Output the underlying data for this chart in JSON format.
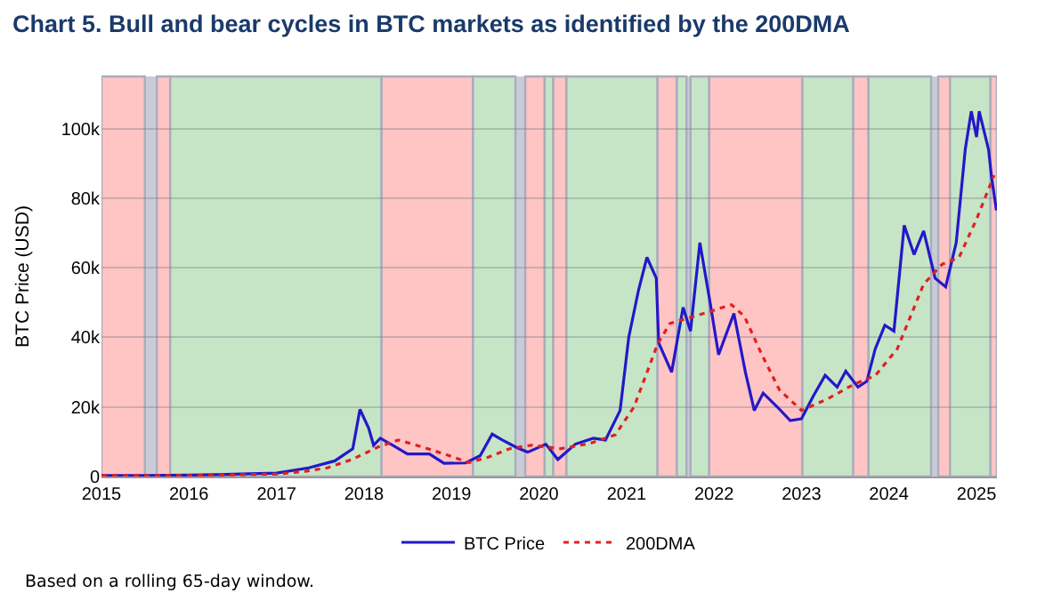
{
  "chart_data": {
    "type": "line",
    "title": "Chart 5. Bull and bear cycles in BTC markets as identified by the 200DMA",
    "ylabel": "BTC Price (USD)",
    "annotations": [
      "Based on a rolling 65-day window."
    ],
    "xlim": [
      "2015-01-01",
      "2025-03-27"
    ],
    "xticks": [
      "2015",
      "2016",
      "2017",
      "2018",
      "2019",
      "2020",
      "2021",
      "2022",
      "2023",
      "2024",
      "2025"
    ],
    "ylim": [
      0,
      115000
    ],
    "yticks": [
      {
        "value": 0,
        "label": "0"
      },
      {
        "value": 20000,
        "label": "20k"
      },
      {
        "value": 40000,
        "label": "40k"
      },
      {
        "value": 60000,
        "label": "60k"
      },
      {
        "value": 80000,
        "label": "80k"
      },
      {
        "value": 100000,
        "label": "100k"
      }
    ],
    "grid": "y",
    "legend": "bottom",
    "bands": [
      {
        "axis": "x",
        "from": "2015-01-01",
        "to": "2015-07-01",
        "color": "#ffc4c4"
      },
      {
        "axis": "x",
        "from": "2015-08-20",
        "to": "2015-10-15",
        "color": "#ffc4c4"
      },
      {
        "axis": "x",
        "from": "2015-10-15",
        "to": "2018-03-15",
        "color": "#c6e5c6"
      },
      {
        "axis": "x",
        "from": "2018-03-15",
        "to": "2019-04-01",
        "color": "#ffc4c4"
      },
      {
        "axis": "x",
        "from": "2019-04-01",
        "to": "2019-09-25",
        "color": "#c6e5c6"
      },
      {
        "axis": "x",
        "from": "2019-11-05",
        "to": "2020-01-25",
        "color": "#ffc4c4"
      },
      {
        "axis": "x",
        "from": "2020-01-25",
        "to": "2020-03-01",
        "color": "#c6e5c6"
      },
      {
        "axis": "x",
        "from": "2020-03-01",
        "to": "2020-04-25",
        "color": "#ffc4c4"
      },
      {
        "axis": "x",
        "from": "2020-04-25",
        "to": "2021-05-10",
        "color": "#c6e5c6"
      },
      {
        "axis": "x",
        "from": "2021-05-10",
        "to": "2021-07-30",
        "color": "#ffc4c4"
      },
      {
        "axis": "x",
        "from": "2021-07-30",
        "to": "2021-09-08",
        "color": "#c6e5c6"
      },
      {
        "axis": "x",
        "from": "2021-09-25",
        "to": "2021-12-12",
        "color": "#c6e5c6"
      },
      {
        "axis": "x",
        "from": "2021-12-12",
        "to": "2023-01-05",
        "color": "#ffc4c4"
      },
      {
        "axis": "x",
        "from": "2023-01-05",
        "to": "2023-08-05",
        "color": "#c6e5c6"
      },
      {
        "axis": "x",
        "from": "2023-08-05",
        "to": "2023-10-08",
        "color": "#ffc4c4"
      },
      {
        "axis": "x",
        "from": "2023-10-08",
        "to": "2024-06-25",
        "color": "#c6e5c6"
      },
      {
        "axis": "x",
        "from": "2024-07-25",
        "to": "2024-09-12",
        "color": "#ffc4c4"
      },
      {
        "axis": "x",
        "from": "2024-09-12",
        "to": "2025-02-28",
        "color": "#c6e5c6"
      },
      {
        "axis": "x",
        "from": "2025-02-28",
        "to": "2025-03-27",
        "color": "#ffc4c4"
      }
    ],
    "series": [
      {
        "name": "BTC Price",
        "color": "#2318c8",
        "line_style": "solid",
        "x": [
          "2015-01-01",
          "2015-07-01",
          "2016-01-01",
          "2016-07-01",
          "2017-01-01",
          "2017-05-15",
          "2017-09-01",
          "2017-11-15",
          "2017-12-15",
          "2018-01-20",
          "2018-02-10",
          "2018-03-10",
          "2018-05-01",
          "2018-07-01",
          "2018-10-01",
          "2018-12-01",
          "2019-03-01",
          "2019-05-01",
          "2019-06-20",
          "2019-08-01",
          "2019-10-01",
          "2019-11-15",
          "2020-01-30",
          "2020-03-20",
          "2020-06-01",
          "2020-08-15",
          "2020-10-05",
          "2020-12-05",
          "2021-01-10",
          "2021-02-20",
          "2021-03-27",
          "2021-05-05",
          "2021-05-15",
          "2021-07-08",
          "2021-08-25",
          "2021-09-25",
          "2021-11-03",
          "2021-12-15",
          "2022-01-20",
          "2022-03-25",
          "2022-05-12",
          "2022-06-18",
          "2022-07-25",
          "2022-09-25",
          "2022-11-15",
          "2023-01-01",
          "2023-02-20",
          "2023-04-10",
          "2023-05-30",
          "2023-07-05",
          "2023-08-25",
          "2023-10-01",
          "2023-11-05",
          "2023-12-15",
          "2024-01-22",
          "2024-03-05",
          "2024-04-15",
          "2024-05-25",
          "2024-07-12",
          "2024-08-25",
          "2024-10-08",
          "2024-11-15",
          "2024-12-10",
          "2025-01-01",
          "2025-01-12",
          "2025-02-20",
          "2025-03-05",
          "2025-03-25"
        ],
        "values": [
          300,
          280,
          430,
          650,
          1000,
          2500,
          4500,
          8000,
          19300,
          14000,
          9000,
          11000,
          9000,
          6500,
          6500,
          3800,
          3900,
          6000,
          12200,
          10500,
          8300,
          7000,
          9300,
          4900,
          9300,
          11000,
          10500,
          19000,
          40000,
          53600,
          63000,
          57000,
          38400,
          30000,
          48600,
          41800,
          67200,
          50300,
          35000,
          46900,
          30000,
          19000,
          24000,
          19800,
          16100,
          16600,
          23200,
          29100,
          25700,
          30300,
          25700,
          27400,
          36700,
          43500,
          41800,
          72200,
          63800,
          70600,
          57000,
          54500,
          67200,
          94200,
          105000,
          97600,
          105000,
          94000,
          85800,
          76500
        ]
      },
      {
        "name": "200DMA",
        "color": "#e02020",
        "line_style": "dotted",
        "x": [
          "2015-01-01",
          "2016-01-01",
          "2016-07-01",
          "2017-01-01",
          "2017-05-01",
          "2017-08-01",
          "2017-11-15",
          "2018-03-01",
          "2018-05-25",
          "2018-09-01",
          "2018-12-01",
          "2019-03-15",
          "2019-06-01",
          "2019-09-01",
          "2019-12-01",
          "2020-04-01",
          "2020-08-01",
          "2020-11-15",
          "2021-02-01",
          "2021-05-10",
          "2021-07-01",
          "2021-11-25",
          "2022-03-15",
          "2022-05-08",
          "2022-07-20",
          "2022-10-01",
          "2023-01-01",
          "2023-04-20",
          "2023-08-10",
          "2023-11-05",
          "2024-02-05",
          "2024-05-25",
          "2024-08-10",
          "2024-10-20",
          "2025-01-01",
          "2025-03-15"
        ],
        "values": [
          300,
          300,
          500,
          700,
          1500,
          2500,
          5000,
          8500,
          10500,
          8500,
          6500,
          4000,
          5500,
          8000,
          9000,
          8000,
          9500,
          12000,
          20000,
          38000,
          44000,
          47000,
          49400,
          46000,
          35000,
          24900,
          19000,
          22300,
          26600,
          29000,
          36700,
          55300,
          61000,
          63000,
          74000,
          86600
        ]
      }
    ]
  }
}
